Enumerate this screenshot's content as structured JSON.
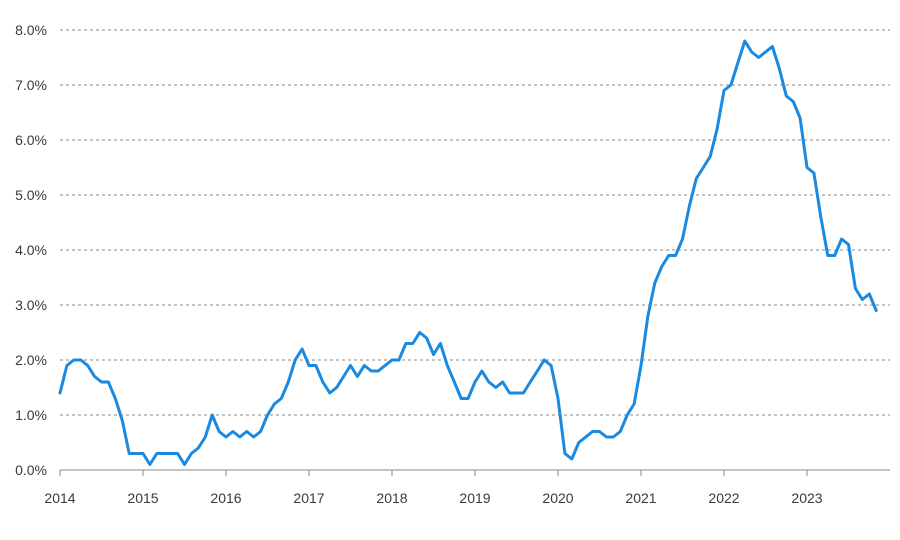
{
  "chart_data": {
    "type": "line",
    "title": "",
    "xlabel": "",
    "ylabel": "",
    "ylim": [
      0,
      8
    ],
    "xlim": [
      2014,
      2024
    ],
    "grid": true,
    "y_ticks": [
      {
        "value": 0,
        "label": "0.0%"
      },
      {
        "value": 1,
        "label": "1.0%"
      },
      {
        "value": 2,
        "label": "2.0%"
      },
      {
        "value": 3,
        "label": "3.0%"
      },
      {
        "value": 4,
        "label": "4.0%"
      },
      {
        "value": 5,
        "label": "5.0%"
      },
      {
        "value": 6,
        "label": "6.0%"
      },
      {
        "value": 7,
        "label": "7.0%"
      },
      {
        "value": 8,
        "label": "8.0%"
      }
    ],
    "x_ticks": [
      {
        "value": 2014,
        "label": "2014"
      },
      {
        "value": 2015,
        "label": "2015"
      },
      {
        "value": 2016,
        "label": "2016"
      },
      {
        "value": 2017,
        "label": "2017"
      },
      {
        "value": 2018,
        "label": "2018"
      },
      {
        "value": 2019,
        "label": "2019"
      },
      {
        "value": 2020,
        "label": "2020"
      },
      {
        "value": 2021,
        "label": "2021"
      },
      {
        "value": 2022,
        "label": "2022"
      },
      {
        "value": 2023,
        "label": "2023"
      }
    ],
    "series": [
      {
        "color": "#1a8ae0",
        "points": [
          [
            "2014-01",
            1.4
          ],
          [
            "2014-02",
            1.9
          ],
          [
            "2014-03",
            2.0
          ],
          [
            "2014-04",
            2.0
          ],
          [
            "2014-05",
            1.9
          ],
          [
            "2014-06",
            1.7
          ],
          [
            "2014-07",
            1.6
          ],
          [
            "2014-08",
            1.6
          ],
          [
            "2014-09",
            1.3
          ],
          [
            "2014-10",
            0.9
          ],
          [
            "2014-11",
            0.3
          ],
          [
            "2014-12",
            0.3
          ],
          [
            "2015-01",
            0.3
          ],
          [
            "2015-02",
            0.1
          ],
          [
            "2015-03",
            0.3
          ],
          [
            "2015-04",
            0.3
          ],
          [
            "2015-05",
            0.3
          ],
          [
            "2015-06",
            0.3
          ],
          [
            "2015-07",
            0.1
          ],
          [
            "2015-08",
            0.3
          ],
          [
            "2015-09",
            0.4
          ],
          [
            "2015-10",
            0.6
          ],
          [
            "2015-11",
            1.0
          ],
          [
            "2015-12",
            0.7
          ],
          [
            "2016-01",
            0.6
          ],
          [
            "2016-02",
            0.7
          ],
          [
            "2016-03",
            0.6
          ],
          [
            "2016-04",
            0.7
          ],
          [
            "2016-05",
            0.6
          ],
          [
            "2016-06",
            0.7
          ],
          [
            "2016-07",
            1.0
          ],
          [
            "2016-08",
            1.2
          ],
          [
            "2016-09",
            1.3
          ],
          [
            "2016-10",
            1.6
          ],
          [
            "2016-11",
            2.0
          ],
          [
            "2016-12",
            2.2
          ],
          [
            "2017-01",
            1.9
          ],
          [
            "2017-02",
            1.9
          ],
          [
            "2017-03",
            1.6
          ],
          [
            "2017-04",
            1.4
          ],
          [
            "2017-05",
            1.5
          ],
          [
            "2017-06",
            1.7
          ],
          [
            "2017-07",
            1.9
          ],
          [
            "2017-08",
            1.7
          ],
          [
            "2017-09",
            1.9
          ],
          [
            "2017-10",
            1.8
          ],
          [
            "2017-11",
            1.8
          ],
          [
            "2017-12",
            1.9
          ],
          [
            "2018-01",
            2.0
          ],
          [
            "2018-02",
            2.0
          ],
          [
            "2018-03",
            2.3
          ],
          [
            "2018-04",
            2.3
          ],
          [
            "2018-05",
            2.5
          ],
          [
            "2018-06",
            2.4
          ],
          [
            "2018-07",
            2.1
          ],
          [
            "2018-08",
            2.3
          ],
          [
            "2018-09",
            1.9
          ],
          [
            "2018-10",
            1.6
          ],
          [
            "2018-11",
            1.3
          ],
          [
            "2018-12",
            1.3
          ],
          [
            "2019-01",
            1.6
          ],
          [
            "2019-02",
            1.8
          ],
          [
            "2019-03",
            1.6
          ],
          [
            "2019-04",
            1.5
          ],
          [
            "2019-05",
            1.6
          ],
          [
            "2019-06",
            1.4
          ],
          [
            "2019-07",
            1.4
          ],
          [
            "2019-08",
            1.4
          ],
          [
            "2019-09",
            1.6
          ],
          [
            "2019-10",
            1.8
          ],
          [
            "2019-11",
            2.0
          ],
          [
            "2019-12",
            1.9
          ],
          [
            "2020-01",
            1.3
          ],
          [
            "2020-02",
            0.3
          ],
          [
            "2020-03",
            0.2
          ],
          [
            "2020-04",
            0.5
          ],
          [
            "2020-05",
            0.6
          ],
          [
            "2020-06",
            0.7
          ],
          [
            "2020-07",
            0.7
          ],
          [
            "2020-08",
            0.6
          ],
          [
            "2020-09",
            0.6
          ],
          [
            "2020-10",
            0.7
          ],
          [
            "2020-11",
            1.0
          ],
          [
            "2020-12",
            1.2
          ],
          [
            "2021-01",
            1.9
          ],
          [
            "2021-02",
            2.8
          ],
          [
            "2021-03",
            3.4
          ],
          [
            "2021-04",
            3.7
          ],
          [
            "2021-05",
            3.9
          ],
          [
            "2021-06",
            3.9
          ],
          [
            "2021-07",
            4.2
          ],
          [
            "2021-08",
            4.8
          ],
          [
            "2021-09",
            5.3
          ],
          [
            "2021-10",
            5.5
          ],
          [
            "2021-11",
            5.7
          ],
          [
            "2021-12",
            6.2
          ],
          [
            "2022-01",
            6.9
          ],
          [
            "2022-02",
            7.0
          ],
          [
            "2022-03",
            7.4
          ],
          [
            "2022-04",
            7.8
          ],
          [
            "2022-05",
            7.6
          ],
          [
            "2022-06",
            7.5
          ],
          [
            "2022-07",
            7.6
          ],
          [
            "2022-08",
            7.7
          ],
          [
            "2022-09",
            7.3
          ],
          [
            "2022-10",
            6.8
          ],
          [
            "2022-11",
            6.7
          ],
          [
            "2022-12",
            6.4
          ],
          [
            "2023-01",
            5.5
          ],
          [
            "2023-02",
            5.4
          ],
          [
            "2023-03",
            4.6
          ],
          [
            "2023-04",
            3.9
          ],
          [
            "2023-05",
            3.9
          ],
          [
            "2023-06",
            4.2
          ],
          [
            "2023-07",
            4.1
          ],
          [
            "2023-08",
            3.3
          ],
          [
            "2023-09",
            3.1
          ],
          [
            "2023-10",
            3.2
          ],
          [
            "2023-11",
            2.9
          ]
        ]
      }
    ]
  }
}
